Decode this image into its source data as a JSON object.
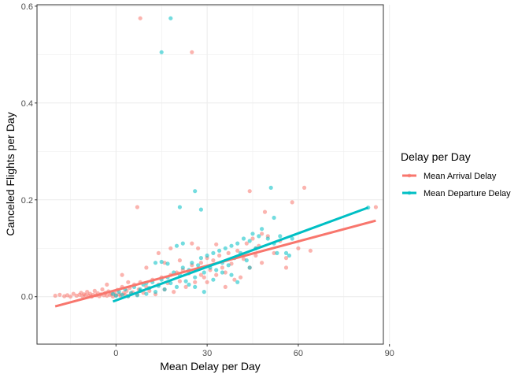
{
  "chart_data": {
    "type": "scatter",
    "xlabel": "Mean Delay per Day",
    "ylabel": "Canceled Flights per Day",
    "xlim": [
      -26,
      88
    ],
    "ylim": [
      -0.098,
      0.603
    ],
    "xticks": [
      0,
      30,
      60,
      90
    ],
    "yticks": [
      0.0,
      0.2,
      0.4,
      0.6
    ],
    "xtick_labels": [
      "0",
      "30",
      "60",
      "90"
    ],
    "ytick_labels": [
      "0.0",
      "0.2",
      "0.4",
      "0.6"
    ],
    "legend": {
      "title": "Delay per Day",
      "position": "right",
      "entries": [
        "Mean Arrival Delay",
        "Mean Departure Delay"
      ]
    },
    "series": [
      {
        "name": "Mean Arrival Delay",
        "color": "#F8766D",
        "trend": [
          [
            -20,
            -0.02
          ],
          [
            85.5,
            0.157
          ]
        ],
        "points": [
          [
            -20,
            0.002
          ],
          [
            -18.5,
            0.004
          ],
          [
            -17,
            0.001
          ],
          [
            -16,
            0.003
          ],
          [
            -15,
            0.0
          ],
          [
            -14,
            0.006
          ],
          [
            -13,
            0.002
          ],
          [
            -12,
            0.004
          ],
          [
            -11.5,
            0.008
          ],
          [
            -11,
            0.001
          ],
          [
            -10.5,
            0.005
          ],
          [
            -10,
            0.003
          ],
          [
            -9.5,
            0.01
          ],
          [
            -9,
            0.002
          ],
          [
            -8.5,
            0.006
          ],
          [
            -8,
            0.0
          ],
          [
            -7.5,
            0.004
          ],
          [
            -7,
            0.012
          ],
          [
            -6.5,
            0.003
          ],
          [
            -6,
            0.007
          ],
          [
            -5.5,
            0.001
          ],
          [
            -5,
            0.005
          ],
          [
            -4.5,
            0.015
          ],
          [
            -4,
            0.003
          ],
          [
            -3.5,
            0.008
          ],
          [
            -3,
            0.002
          ],
          [
            -2.5,
            0.011
          ],
          [
            -2,
            0.004
          ],
          [
            -1.5,
            0.006
          ],
          [
            -1,
            0.0
          ],
          [
            -0.5,
            0.009
          ],
          [
            0,
            0.003
          ],
          [
            0.5,
            0.014
          ],
          [
            1,
            0.005
          ],
          [
            1.5,
            0.002
          ],
          [
            2,
            0.02
          ],
          [
            2.5,
            0.007
          ],
          [
            3,
            0.004
          ],
          [
            3.5,
            0.012
          ],
          [
            4,
            0.001
          ],
          [
            4.5,
            0.018
          ],
          [
            5,
            0.006
          ],
          [
            5.5,
            0.009
          ],
          [
            6,
            0.025
          ],
          [
            7,
            0.004
          ],
          [
            7.5,
            0.015
          ],
          [
            8,
            0.03
          ],
          [
            9,
            0.008
          ],
          [
            10,
            0.02
          ],
          [
            11,
            0.012
          ],
          [
            12,
            0.035
          ],
          [
            13,
            0.005
          ],
          [
            14,
            0.025
          ],
          [
            15,
            0.04
          ],
          [
            16,
            0.015
          ],
          [
            17,
            0.028
          ],
          [
            18,
            0.045
          ],
          [
            19,
            0.01
          ],
          [
            20,
            0.05
          ],
          [
            21,
            0.032
          ],
          [
            22,
            0.055
          ],
          [
            23,
            0.02
          ],
          [
            24,
            0.048
          ],
          [
            25,
            0.065
          ],
          [
            26,
            0.03
          ],
          [
            27,
            0.058
          ],
          [
            28,
            0.07
          ],
          [
            29,
            0.04
          ],
          [
            30,
            0.08
          ],
          [
            31,
            0.055
          ],
          [
            32,
            0.075
          ],
          [
            33,
            0.045
          ],
          [
            34,
            0.085
          ],
          [
            35,
            0.06
          ],
          [
            36,
            0.05
          ],
          [
            37,
            0.09
          ],
          [
            38,
            0.068
          ],
          [
            40,
            0.095
          ],
          [
            41,
            0.04
          ],
          [
            42,
            0.078
          ],
          [
            43,
            0.11
          ],
          [
            44,
            0.06
          ],
          [
            45,
            0.12
          ],
          [
            46,
            0.085
          ],
          [
            47,
            0.105
          ],
          [
            48,
            0.07
          ],
          [
            50,
            0.125
          ],
          [
            52,
            0.09
          ],
          [
            54,
            0.115
          ],
          [
            56,
            0.08
          ],
          [
            58,
            0.195
          ],
          [
            60,
            0.1
          ],
          [
            62,
            0.225
          ],
          [
            64,
            0.095
          ],
          [
            85.5,
            0.185
          ],
          [
            8,
            0.575
          ],
          [
            25,
            0.505
          ],
          [
            7,
            0.185
          ],
          [
            44,
            0.218
          ],
          [
            49,
            0.175
          ],
          [
            14,
            0.09
          ],
          [
            33,
            0.108
          ],
          [
            18,
            0.1
          ],
          [
            25,
            0.11
          ],
          [
            2,
            0.045
          ],
          [
            4,
            0.03
          ],
          [
            -3,
            0.025
          ],
          [
            10,
            0.06
          ],
          [
            16,
            0.07
          ],
          [
            21,
            0.075
          ],
          [
            28,
            0.045
          ],
          [
            30,
            0.03
          ],
          [
            36,
            0.02
          ],
          [
            39,
            0.035
          ],
          [
            27,
            0.1
          ],
          [
            46,
            0.1
          ],
          [
            56,
            0.06
          ],
          [
            48,
            0.13
          ]
        ]
      },
      {
        "name": "Mean Departure Delay",
        "color": "#00BFC4",
        "trend": [
          [
            -1,
            -0.01
          ],
          [
            83,
            0.184
          ]
        ],
        "points": [
          [
            -1,
            0.006
          ],
          [
            0,
            0.002
          ],
          [
            1,
            0.01
          ],
          [
            2,
            0.004
          ],
          [
            3,
            0.015
          ],
          [
            4,
            0.001
          ],
          [
            5,
            0.008
          ],
          [
            6,
            0.02
          ],
          [
            7,
            0.003
          ],
          [
            8,
            0.012
          ],
          [
            9,
            0.025
          ],
          [
            10,
            0.006
          ],
          [
            11,
            0.018
          ],
          [
            12,
            0.03
          ],
          [
            13,
            0.01
          ],
          [
            14,
            0.022
          ],
          [
            15,
            0.035
          ],
          [
            16,
            0.015
          ],
          [
            17,
            0.04
          ],
          [
            18,
            0.028
          ],
          [
            19,
            0.05
          ],
          [
            20,
            0.02
          ],
          [
            21,
            0.045
          ],
          [
            22,
            0.06
          ],
          [
            23,
            0.032
          ],
          [
            24,
            0.055
          ],
          [
            25,
            0.07
          ],
          [
            26,
            0.04
          ],
          [
            27,
            0.065
          ],
          [
            28,
            0.08
          ],
          [
            29,
            0.05
          ],
          [
            30,
            0.085
          ],
          [
            31,
            0.06
          ],
          [
            32,
            0.09
          ],
          [
            33,
            0.055
          ],
          [
            34,
            0.095
          ],
          [
            35,
            0.07
          ],
          [
            36,
            0.1
          ],
          [
            37,
            0.065
          ],
          [
            38,
            0.105
          ],
          [
            39,
            0.08
          ],
          [
            40,
            0.11
          ],
          [
            41,
            0.09
          ],
          [
            42,
            0.12
          ],
          [
            43,
            0.075
          ],
          [
            44,
            0.115
          ],
          [
            45,
            0.13
          ],
          [
            46,
            0.1
          ],
          [
            47,
            0.125
          ],
          [
            48,
            0.14
          ],
          [
            50,
            0.12
          ],
          [
            52,
            0.11
          ],
          [
            54,
            0.125
          ],
          [
            56,
            0.09
          ],
          [
            58,
            0.12
          ],
          [
            83,
            0.184
          ],
          [
            18,
            0.575
          ],
          [
            15,
            0.505
          ],
          [
            26,
            0.218
          ],
          [
            21,
            0.185
          ],
          [
            28,
            0.18
          ],
          [
            51,
            0.225
          ],
          [
            52,
            0.163
          ],
          [
            20,
            0.105
          ],
          [
            22,
            0.11
          ],
          [
            13,
            0.07
          ],
          [
            15,
            0.072
          ],
          [
            17,
            0.068
          ],
          [
            40,
            0.03
          ],
          [
            38,
            0.045
          ],
          [
            32,
            0.035
          ],
          [
            24,
            0.025
          ],
          [
            10,
            0.028
          ],
          [
            8,
            0.015
          ],
          [
            26,
            0.02
          ],
          [
            29,
            0.01
          ],
          [
            44,
            0.06
          ],
          [
            53,
            0.09
          ],
          [
            57,
            0.085
          ],
          [
            35,
            0.05
          ]
        ]
      }
    ]
  }
}
